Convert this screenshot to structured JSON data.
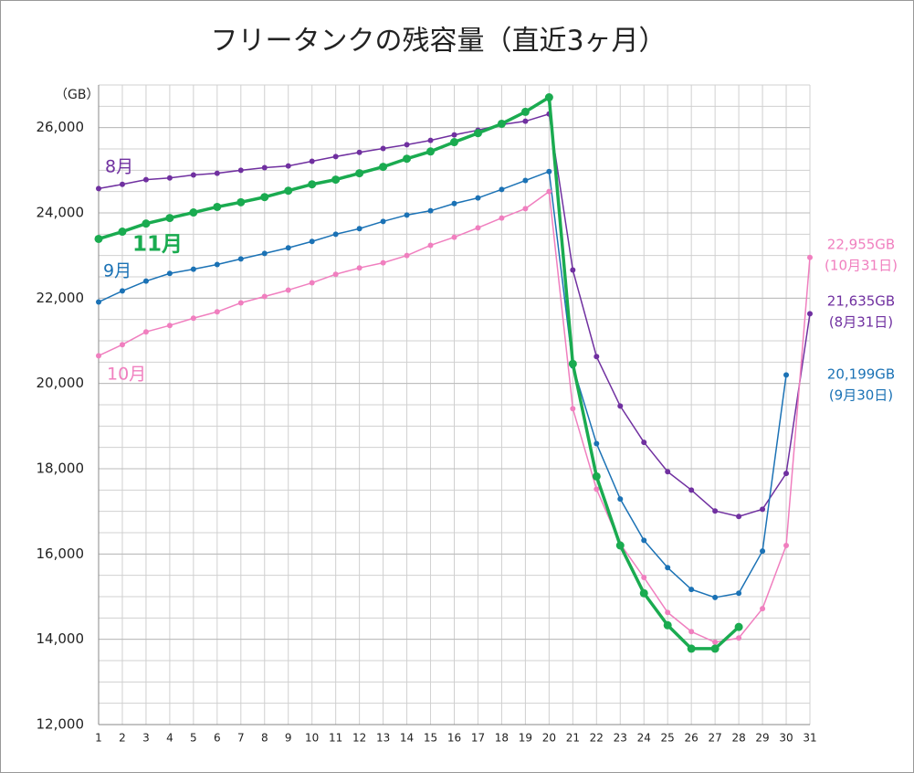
{
  "chart_data": {
    "type": "line",
    "title": "フリータンクの残容量（直近3ヶ月）",
    "y_unit": "（GB）",
    "x": [
      1,
      2,
      3,
      4,
      5,
      6,
      7,
      8,
      9,
      10,
      11,
      12,
      13,
      14,
      15,
      16,
      17,
      18,
      19,
      20,
      21,
      22,
      23,
      24,
      25,
      26,
      27,
      28,
      29,
      30,
      31
    ],
    "xlim": [
      1,
      31
    ],
    "xticks": [
      1,
      2,
      3,
      4,
      5,
      6,
      7,
      8,
      9,
      10,
      11,
      12,
      13,
      14,
      15,
      16,
      17,
      18,
      19,
      20,
      21,
      22,
      23,
      24,
      25,
      26,
      27,
      28,
      29,
      30,
      31
    ],
    "ylim": [
      12000,
      27000
    ],
    "yticks": [
      {
        "value": 12000,
        "label": "12,000"
      },
      {
        "value": 14000,
        "label": "14,000"
      },
      {
        "value": 16000,
        "label": "16,000"
      },
      {
        "value": 18000,
        "label": "18,000"
      },
      {
        "value": 20000,
        "label": "20,000"
      },
      {
        "value": 22000,
        "label": "22,000"
      },
      {
        "value": 24000,
        "label": "24,000"
      },
      {
        "value": 26000,
        "label": "26,000"
      }
    ],
    "grid": true,
    "series": [
      {
        "name": "8月",
        "color": "#7030a0",
        "values": [
          24570,
          24670,
          24780,
          24820,
          24890,
          24930,
          25000,
          25060,
          25100,
          25210,
          25320,
          25420,
          25510,
          25600,
          25700,
          25830,
          25940,
          26070,
          26150,
          26320,
          22660,
          20630,
          19470,
          18620,
          17930,
          17500,
          17010,
          16880,
          17050,
          17890,
          21635
        ],
        "value_labels": [
          null,
          null,
          null,
          null,
          null,
          null,
          null,
          null,
          null,
          null,
          null,
          null,
          null,
          null,
          null,
          null,
          null,
          null,
          null,
          null,
          null,
          null,
          null,
          null,
          null,
          null,
          null,
          null,
          null,
          null,
          "21,635GB"
        ],
        "end_note": "(8月31日)"
      },
      {
        "name": "9月",
        "color": "#1b72b5",
        "values": [
          21910,
          22170,
          22400,
          22580,
          22680,
          22790,
          22920,
          23050,
          23180,
          23330,
          23500,
          23630,
          23800,
          23950,
          24050,
          24220,
          24350,
          24550,
          24760,
          24970,
          20410,
          18590,
          17290,
          16320,
          15680,
          15170,
          14980,
          15080,
          16070,
          20199,
          null
        ],
        "value_labels": [
          null,
          null,
          null,
          null,
          null,
          null,
          null,
          null,
          null,
          null,
          null,
          null,
          null,
          null,
          null,
          null,
          null,
          null,
          null,
          null,
          null,
          null,
          null,
          null,
          null,
          null,
          null,
          null,
          null,
          "20,199GB",
          null
        ],
        "end_note": "(9月30日)"
      },
      {
        "name": "10月",
        "color": "#f07fbf",
        "values": [
          20650,
          20910,
          21210,
          21360,
          21530,
          21680,
          21890,
          22040,
          22190,
          22360,
          22560,
          22710,
          22830,
          23000,
          23240,
          23430,
          23650,
          23880,
          24100,
          24500,
          19410,
          17520,
          16240,
          15450,
          14630,
          14180,
          13930,
          14030,
          14720,
          16200,
          22955
        ],
        "value_labels": [
          null,
          null,
          null,
          null,
          null,
          null,
          null,
          null,
          null,
          null,
          null,
          null,
          null,
          null,
          null,
          null,
          null,
          null,
          null,
          null,
          null,
          null,
          null,
          null,
          null,
          null,
          null,
          null,
          null,
          null,
          "22,955GB"
        ],
        "end_note": "(10月31日)"
      },
      {
        "name": "11月",
        "color": "#1aab50",
        "values": [
          23390,
          23560,
          23750,
          23880,
          24010,
          24140,
          24250,
          24370,
          24520,
          24670,
          24780,
          24930,
          25080,
          25270,
          25440,
          25660,
          25870,
          26090,
          26370,
          26710,
          20460,
          17820,
          16200,
          15080,
          14330,
          13780,
          13780,
          14290,
          null,
          null,
          null
        ]
      }
    ]
  }
}
